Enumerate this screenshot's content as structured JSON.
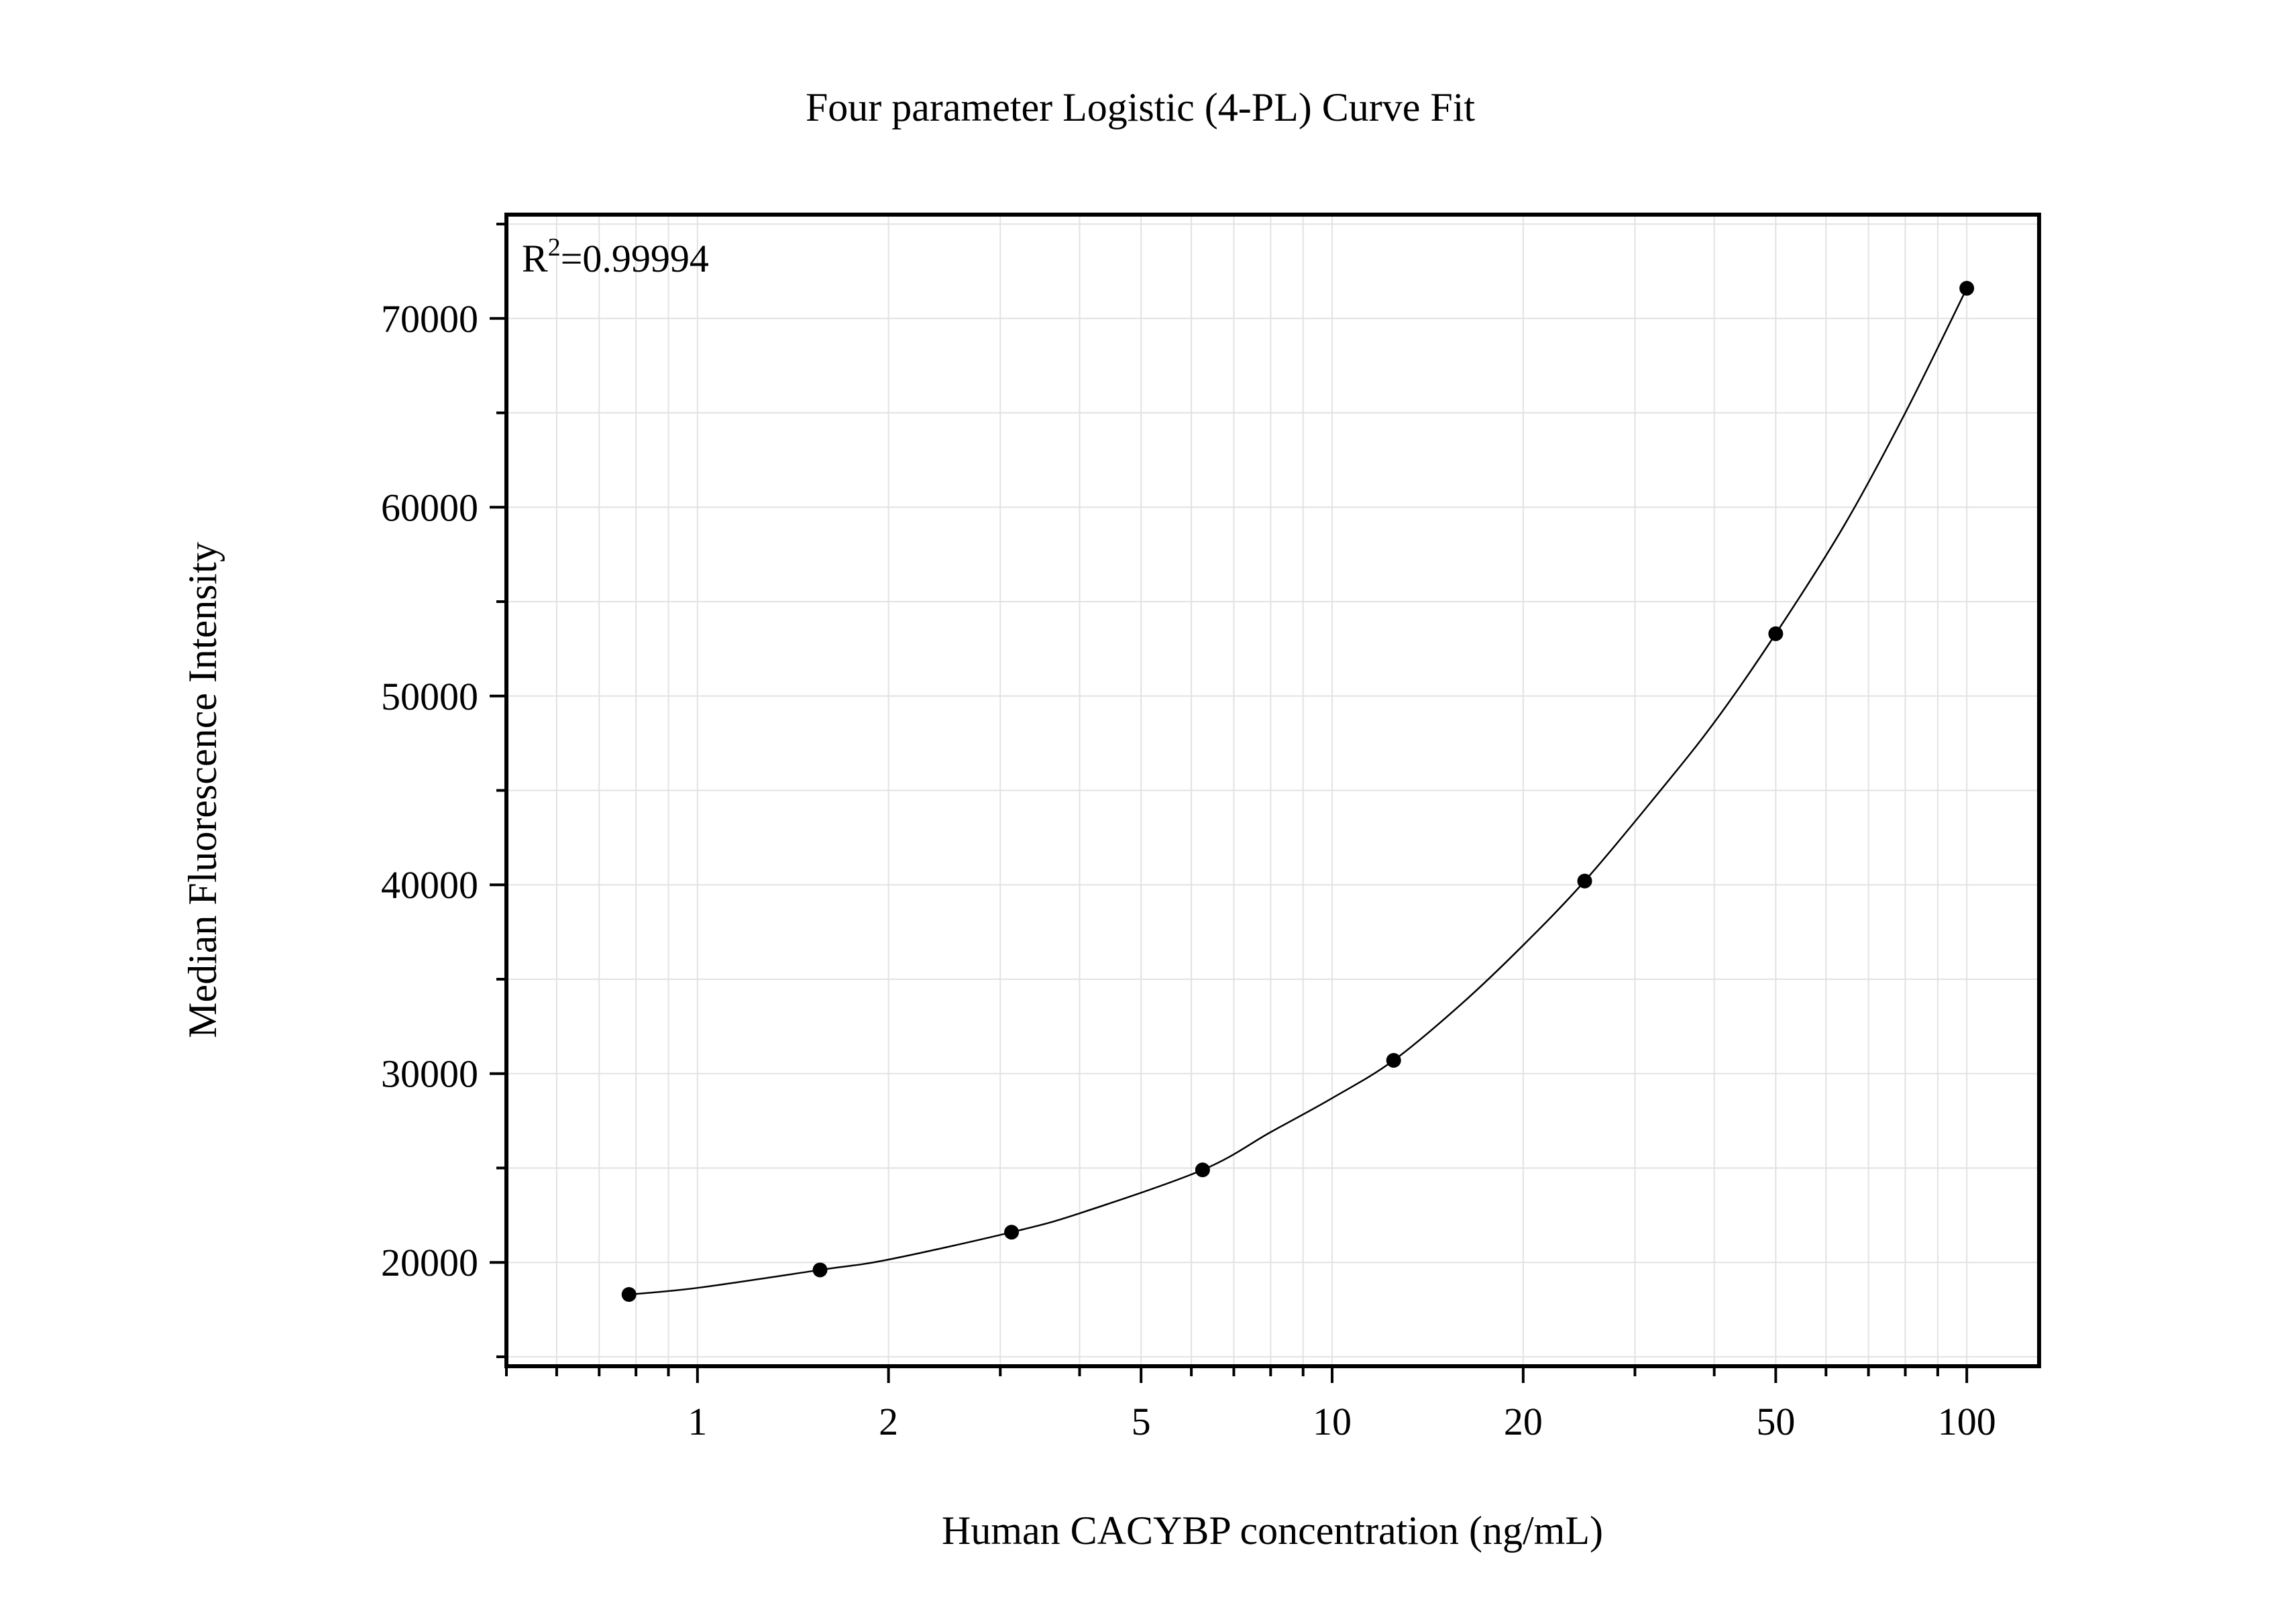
{
  "chart_data": {
    "type": "scatter",
    "title": "Four parameter Logistic (4-PL) Curve Fit",
    "xlabel": "Human CACYBP concentration (ng/mL)",
    "ylabel": "Median Fluorescence Intensity",
    "x_scale": "log",
    "xlim": [
      0.5,
      130
    ],
    "ylim": [
      14500,
      75500
    ],
    "x_ticks": [
      1,
      2,
      5,
      10,
      20,
      50,
      100
    ],
    "x_tick_labels": [
      "1",
      "2",
      "5",
      "10",
      "20",
      "50",
      "100"
    ],
    "y_ticks": [
      20000,
      30000,
      40000,
      50000,
      60000,
      70000
    ],
    "y_tick_labels": [
      "20000",
      "30000",
      "40000",
      "50000",
      "60000",
      "70000"
    ],
    "grid": true,
    "annotation": {
      "prefix": "R",
      "superscript": "2",
      "suffix": "=0.99994"
    },
    "series": [
      {
        "type": "scatter",
        "x": [
          0.78,
          1.56,
          3.125,
          6.25,
          12.5,
          25,
          50,
          100
        ],
        "y": [
          18300,
          19600,
          21600,
          24900,
          30700,
          40200,
          53300,
          71600
        ]
      },
      {
        "type": "line",
        "x": [
          0.78,
          1,
          1.56,
          2,
          3.125,
          4,
          6.25,
          8,
          10,
          12.5,
          16,
          20,
          25,
          32,
          40,
          50,
          64,
          80,
          100
        ],
        "y": [
          18300,
          18650,
          19600,
          20150,
          21600,
          22600,
          24900,
          26900,
          28700,
          30700,
          33700,
          36800,
          40200,
          44500,
          48600,
          53300,
          59000,
          65000,
          71600
        ]
      }
    ],
    "colors": {
      "marker": "#000000",
      "curve": "#000000",
      "grid": "#e2e2e2",
      "axis": "#000000"
    }
  }
}
